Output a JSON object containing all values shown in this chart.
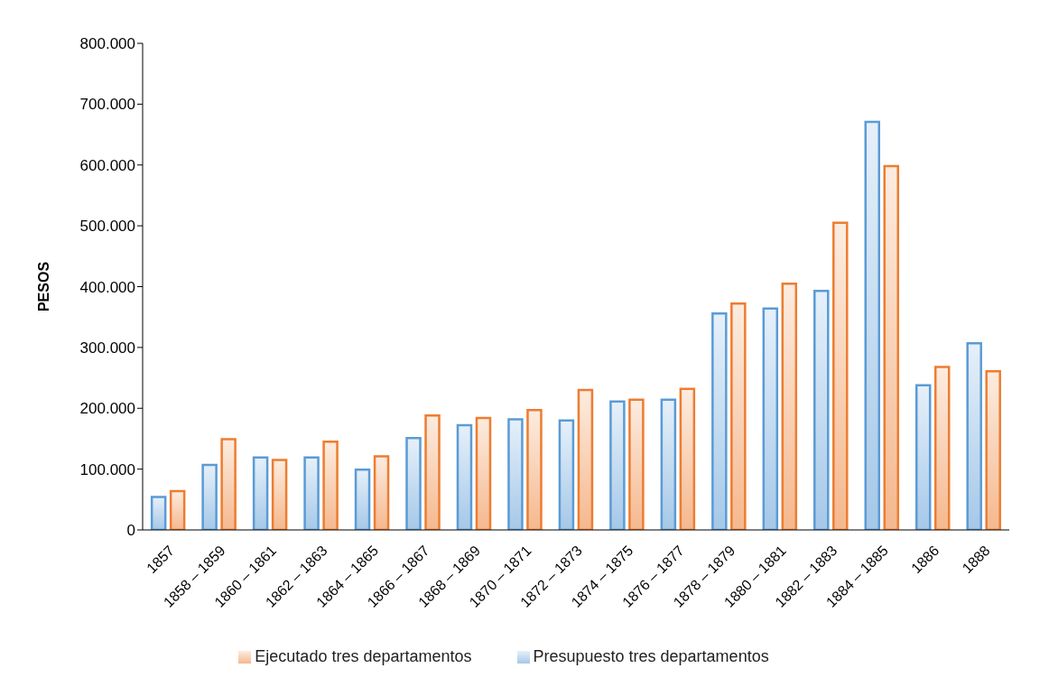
{
  "chart_data": {
    "type": "bar",
    "ylabel": "PESOS",
    "categories": [
      "1857",
      "1858 – 1859",
      "1860 – 1861",
      "1862 – 1863",
      "1864 – 1865",
      "1866 – 1867",
      "1868 – 1869",
      "1870 – 1871",
      "1872 – 1873",
      "1874 – 1875",
      "1876 – 1877",
      "1878 – 1879",
      "1880 – 1881",
      "1882 – 1883",
      "1884 – 1885",
      "1886",
      "1888"
    ],
    "series": [
      {
        "name": "Presupuesto tres departamentos",
        "color": "#5b9bd5",
        "values": [
          54000,
          107000,
          119000,
          119000,
          99000,
          151000,
          172000,
          182000,
          180000,
          211000,
          214000,
          356000,
          364000,
          393000,
          671000,
          238000,
          307000
        ]
      },
      {
        "name": "Ejecutado tres departamentos",
        "color": "#ed7d31",
        "values": [
          64000,
          149000,
          115000,
          145000,
          121000,
          188000,
          184000,
          197000,
          230000,
          214000,
          232000,
          372000,
          405000,
          505000,
          598000,
          268000,
          261000
        ]
      }
    ],
    "ylim": [
      0,
      800000
    ],
    "yticks": [
      0,
      {
        "value": 100000,
        "label": "100.000"
      },
      {
        "value": 200000,
        "label": "200.000"
      },
      {
        "value": 300000,
        "label": "300.000"
      },
      {
        "value": 400000,
        "label": "400.000"
      },
      {
        "value": 500000,
        "label": "500.000"
      },
      {
        "value": 600000,
        "label": "600.000"
      },
      {
        "value": 700000,
        "label": "700.000"
      },
      {
        "value": 800000,
        "label": "800.000"
      }
    ],
    "grid": false,
    "legend": "bottom"
  }
}
